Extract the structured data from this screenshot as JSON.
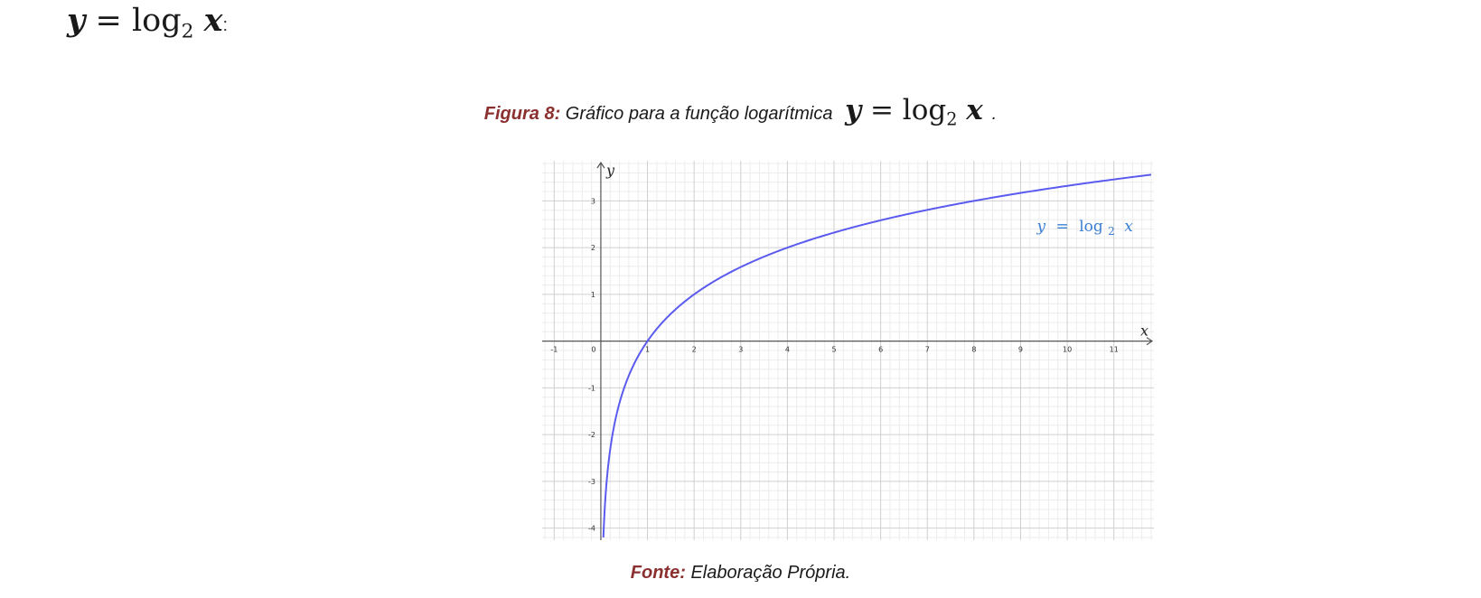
{
  "intro": {
    "formula": {
      "lhs": "y",
      "equals": "=",
      "fn": "log",
      "base": "2",
      "arg": "x"
    },
    "suffix": ":"
  },
  "caption": {
    "lead": "Figura 8:",
    "text": "Gráfico para a função logarítmica",
    "formula": {
      "lhs": "y",
      "equals": "=",
      "fn": "log",
      "base": "2",
      "arg": "x"
    },
    "end": "."
  },
  "source": {
    "lead": "Fonte:",
    "text": "Elaboração Própria."
  },
  "chart_data": {
    "type": "line",
    "function": "log2(x)",
    "xlabel": "x",
    "ylabel": "y",
    "xlim": [
      -1.2,
      11.8
    ],
    "ylim": [
      -4.2,
      3.8
    ],
    "grid": true,
    "x_ticks": [
      "-1",
      "0",
      "1",
      "2",
      "3",
      "4",
      "5",
      "6",
      "7",
      "8",
      "9",
      "10",
      "11"
    ],
    "y_ticks": [
      "-4",
      "-3",
      "-2",
      "-1",
      "1",
      "2",
      "3"
    ],
    "series": [
      {
        "x": [
          0.0625,
          0.125,
          0.25,
          0.5,
          1,
          2,
          3,
          4,
          5,
          6,
          7,
          8,
          9,
          10,
          11,
          11.8
        ],
        "y": [
          -4,
          -3,
          -2,
          -1,
          0,
          1,
          1.585,
          2,
          2.322,
          2.585,
          2.807,
          3,
          3.17,
          3.322,
          3.459,
          3.56
        ],
        "color": "#5b5bf0"
      }
    ],
    "annotation": {
      "y": "y",
      "eq": "=",
      "fn": "log",
      "base": "2",
      "x": "x",
      "color": "#3b7fd4"
    }
  }
}
